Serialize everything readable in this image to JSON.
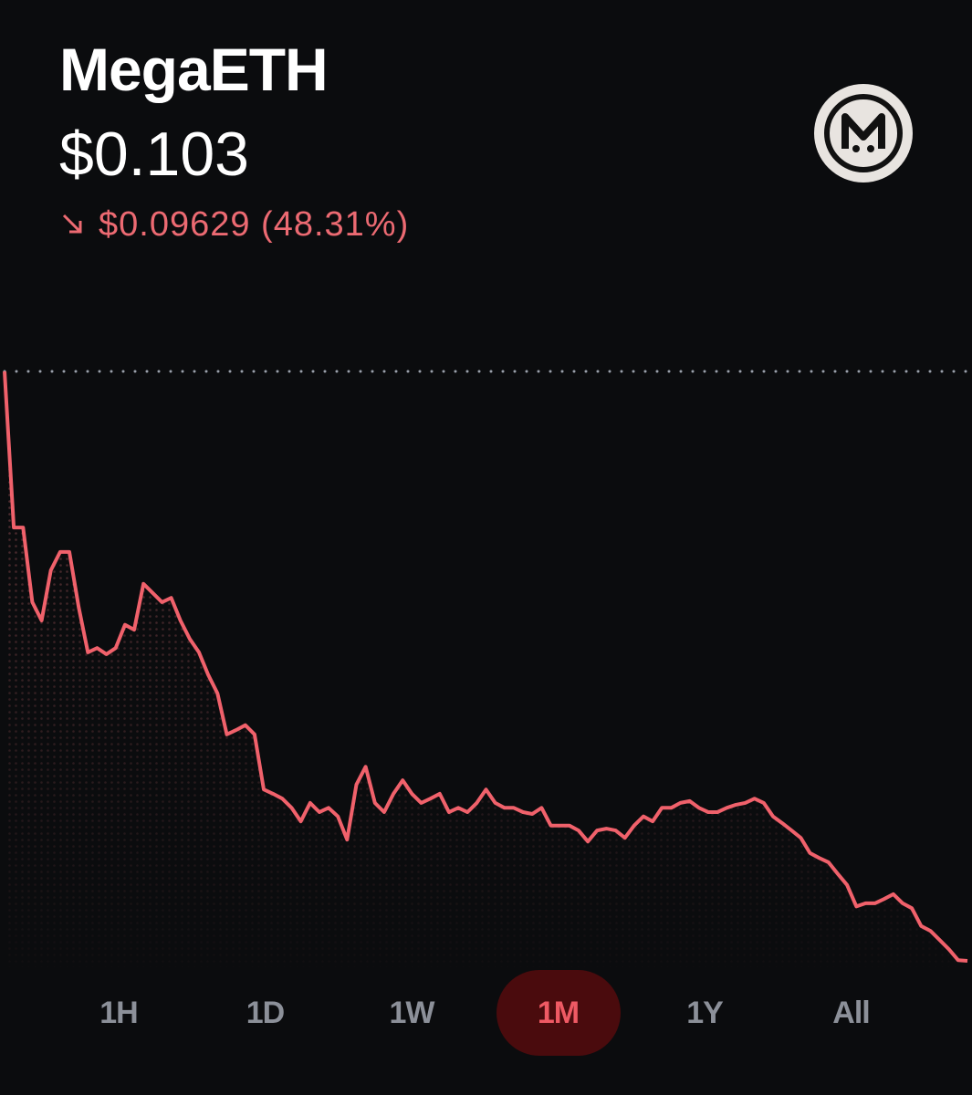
{
  "header": {
    "name": "MegaETH",
    "price": "$0.103",
    "change": "$0.09629 (48.31%)"
  },
  "chart_data": {
    "type": "line",
    "color": "#f0616b",
    "values": [
      0.1993,
      0.1738,
      0.1738,
      0.1616,
      0.1586,
      0.1668,
      0.1698,
      0.1698,
      0.1608,
      0.1534,
      0.1541,
      0.1531,
      0.1541,
      0.1579,
      0.1571,
      0.1646,
      0.1631,
      0.1616,
      0.1623,
      0.1586,
      0.1556,
      0.1534,
      0.1497,
      0.1467,
      0.14,
      0.1407,
      0.1415,
      0.14,
      0.131,
      0.1303,
      0.1295,
      0.128,
      0.1258,
      0.1288,
      0.1273,
      0.128,
      0.1266,
      0.1228,
      0.1318,
      0.1347,
      0.1288,
      0.1273,
      0.1303,
      0.1325,
      0.1303,
      0.1288,
      0.1295,
      0.1303,
      0.1273,
      0.128,
      0.1273,
      0.1288,
      0.131,
      0.1288,
      0.128,
      0.128,
      0.1273,
      0.127,
      0.128,
      0.1251,
      0.1251,
      0.1251,
      0.1243,
      0.1225,
      0.1243,
      0.1246,
      0.1243,
      0.1231,
      0.1251,
      0.1266,
      0.1258,
      0.128,
      0.128,
      0.1288,
      0.1291,
      0.128,
      0.1273,
      0.1273,
      0.128,
      0.1285,
      0.1288,
      0.1295,
      0.1288,
      0.1266,
      0.1255,
      0.1243,
      0.1231,
      0.1206,
      0.1198,
      0.1191,
      0.1172,
      0.1154,
      0.1119,
      0.1124,
      0.1124,
      0.1131,
      0.1139,
      0.1124,
      0.1116,
      0.1087,
      0.1079,
      0.1064,
      0.1049,
      0.1031,
      0.103
    ],
    "reference_line": true
  },
  "timeframes": {
    "options": [
      "1H",
      "1D",
      "1W",
      "1M",
      "1Y",
      "All"
    ],
    "selected": "1M"
  }
}
